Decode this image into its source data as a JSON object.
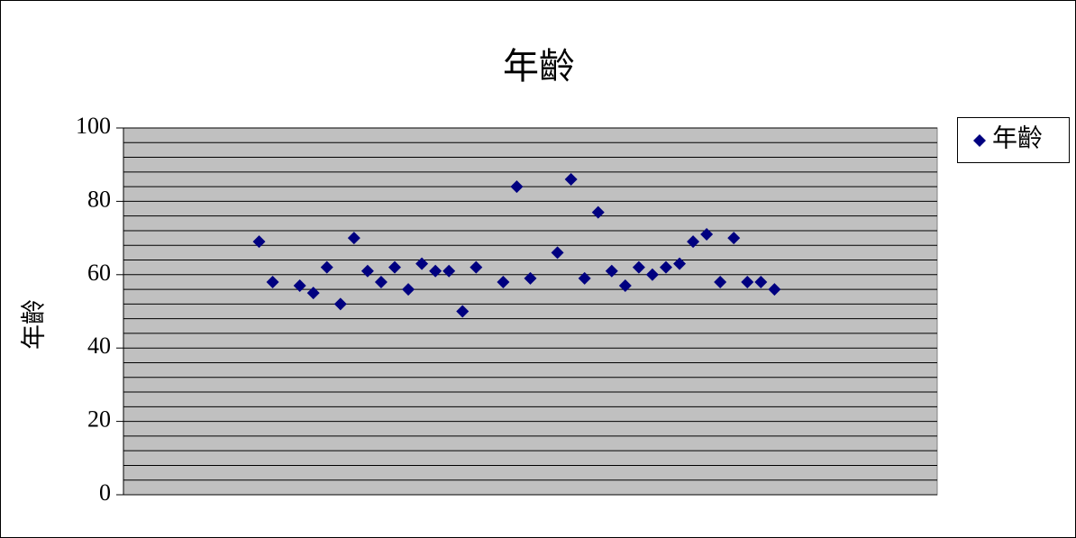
{
  "chart_data": {
    "type": "scatter",
    "title": "年齡",
    "ylabel": "年齡",
    "series": [
      {
        "name": "年齡",
        "color": "#000080",
        "x": [
          10,
          11,
          13,
          14,
          15,
          16,
          17,
          18,
          19,
          20,
          21,
          22,
          23,
          24,
          25,
          26,
          28,
          29,
          30,
          32,
          33,
          34,
          35,
          36,
          37,
          38,
          39,
          40,
          41,
          42,
          43,
          44,
          45,
          46,
          47,
          48
        ],
        "values": [
          69,
          58,
          57,
          55,
          62,
          52,
          70,
          61,
          58,
          62,
          56,
          63,
          61,
          61,
          50,
          62,
          58,
          84,
          59,
          66,
          86,
          59,
          77,
          61,
          57,
          62,
          60,
          62,
          63,
          69,
          71,
          58,
          70,
          58,
          58,
          56
        ]
      }
    ],
    "xlim": [
      0,
      60
    ],
    "ylim": [
      0,
      100
    ],
    "yticks": [
      0,
      20,
      40,
      60,
      80,
      100
    ],
    "minor_yticks": [
      4,
      8,
      12,
      16,
      24,
      28,
      32,
      36,
      44,
      48,
      52,
      56,
      64,
      68,
      72,
      76,
      84,
      88,
      92,
      96
    ],
    "grid": true,
    "plot_background": "#c0c0c0",
    "legend": "right"
  }
}
